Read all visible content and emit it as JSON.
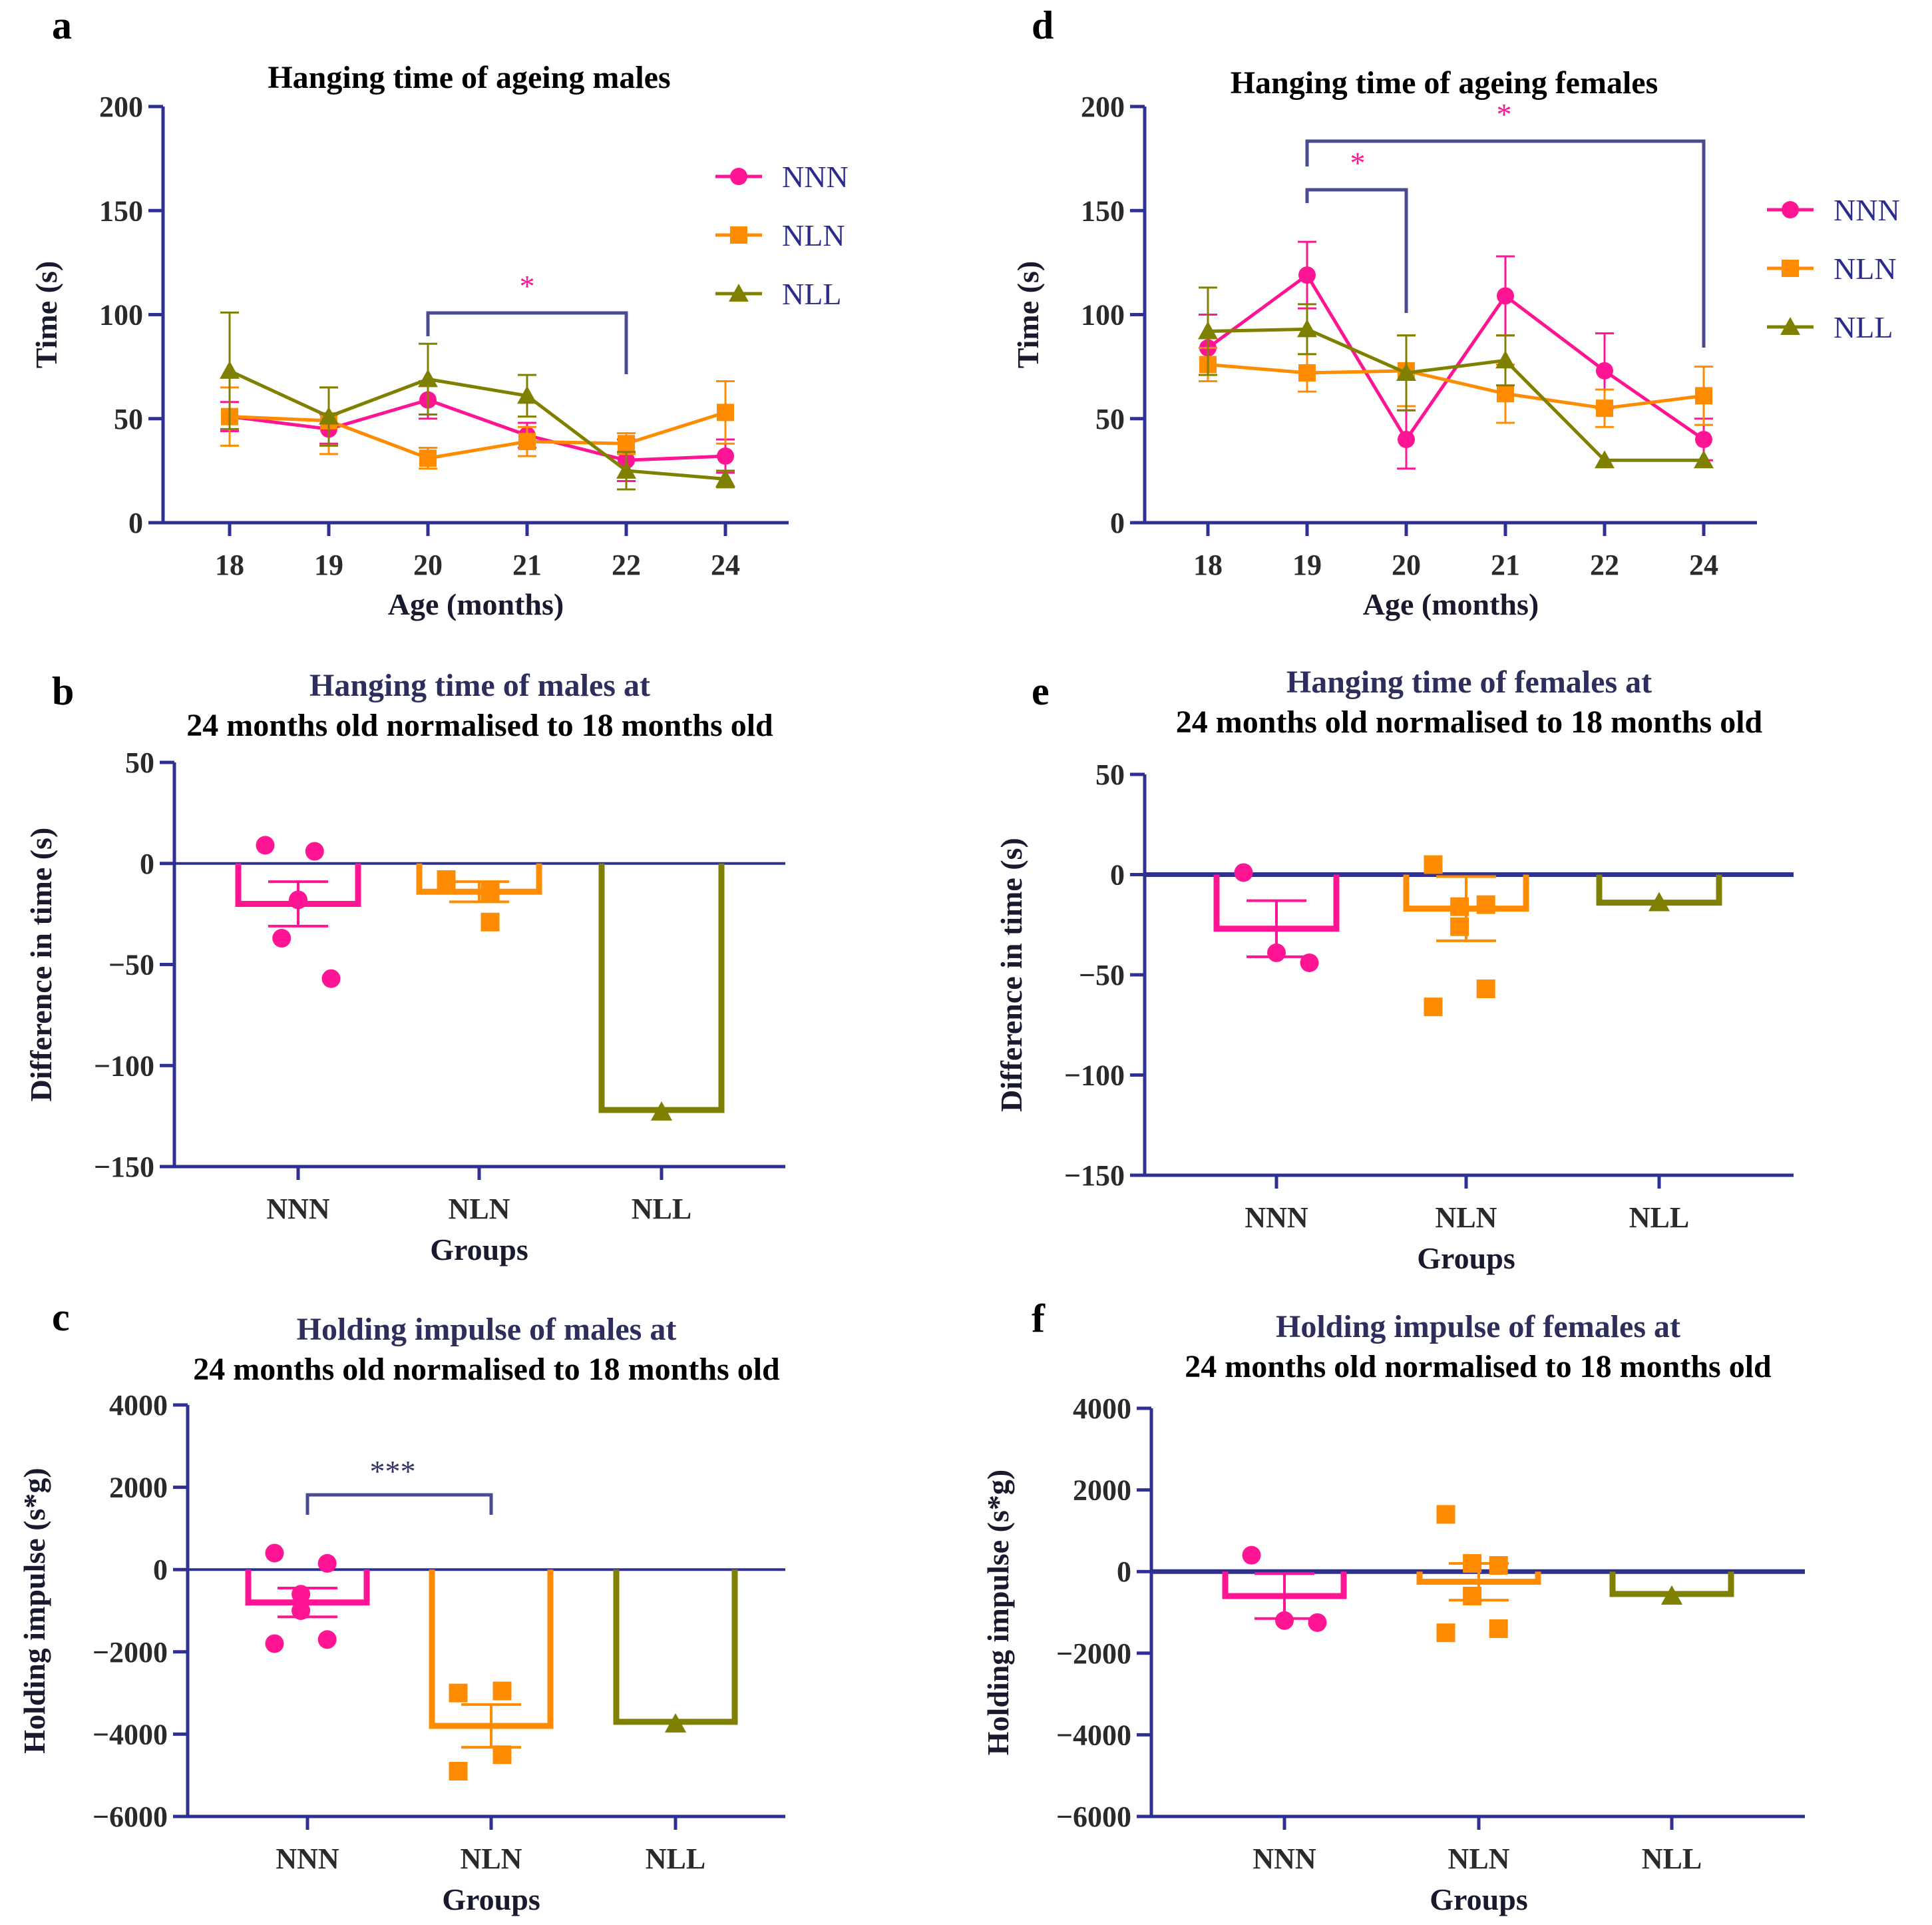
{
  "colors": {
    "NNN": "#ff1493",
    "NLN": "#ff8c00",
    "NLL": "#808000",
    "axis": "#2e3192",
    "bracket": "#4b4b8f",
    "sig_pink": "#ff1493"
  },
  "legend": [
    {
      "name": "NNN",
      "marker": "circle"
    },
    {
      "name": "NLN",
      "marker": "square"
    },
    {
      "name": "NLL",
      "marker": "triangle"
    }
  ],
  "chart_data": [
    {
      "panel": "a",
      "type": "line",
      "title": "Hanging time of ageing males",
      "xlabel": "Age (months)",
      "ylabel": "Time (s)",
      "categories": [
        "18",
        "19",
        "20",
        "21",
        "22",
        "24"
      ],
      "ylim": [
        0,
        200
      ],
      "yticks": [
        0,
        50,
        100,
        150,
        200
      ],
      "series": [
        {
          "name": "NNN",
          "values": [
            51,
            45,
            59,
            42,
            30,
            32
          ],
          "err": [
            7,
            7,
            9,
            6,
            10,
            8
          ]
        },
        {
          "name": "NLN",
          "values": [
            51,
            49,
            31,
            39,
            38,
            53
          ],
          "err": [
            14,
            16,
            5,
            7,
            5,
            15
          ]
        },
        {
          "name": "NLL",
          "values": [
            73,
            51,
            69,
            61,
            25,
            21
          ],
          "err": [
            28,
            14,
            17,
            10,
            9,
            4
          ]
        }
      ],
      "annotations": [
        {
          "from": "20",
          "to": "22",
          "label": "*",
          "color": "pink"
        }
      ]
    },
    {
      "panel": "d",
      "type": "line",
      "title": "Hanging time of ageing females",
      "xlabel": "Age (months)",
      "ylabel": "Time (s)",
      "categories": [
        "18",
        "19",
        "20",
        "21",
        "22",
        "24"
      ],
      "ylim": [
        0,
        200
      ],
      "yticks": [
        0,
        50,
        100,
        150,
        200
      ],
      "series": [
        {
          "name": "NNN",
          "values": [
            84,
            119,
            40,
            109,
            73,
            40
          ],
          "err": [
            16,
            16,
            14,
            19,
            18,
            10
          ]
        },
        {
          "name": "NLN",
          "values": [
            76,
            72,
            73,
            62,
            55,
            61
          ],
          "err": [
            8,
            9,
            17,
            14,
            9,
            14
          ]
        },
        {
          "name": "NLL",
          "values": [
            92,
            93,
            72,
            78,
            30,
            30
          ],
          "err": [
            21,
            12,
            18,
            12,
            0,
            0
          ]
        }
      ],
      "annotations": [
        {
          "from": "19",
          "to": "20",
          "label": "*",
          "color": "pink"
        },
        {
          "from": "19",
          "to": "24",
          "label": "*",
          "color": "pink"
        }
      ]
    },
    {
      "panel": "b",
      "type": "bar",
      "title": [
        "Hanging time of males at",
        "24 months old normalised to 18 months old"
      ],
      "xlabel": "Groups",
      "ylabel": "Difference in time (s)",
      "categories": [
        "NNN",
        "NLN",
        "NLL"
      ],
      "ylim": [
        -150,
        50
      ],
      "yticks": [
        -150,
        -100,
        -50,
        0,
        50
      ],
      "values": [
        -20,
        -14,
        -122
      ],
      "err": [
        11,
        5,
        0
      ],
      "points": [
        [
          9,
          6,
          -18,
          -37,
          -57
        ],
        [
          -8,
          -14,
          -29,
          -9
        ],
        [
          -123
        ]
      ]
    },
    {
      "panel": "e",
      "type": "bar",
      "title": [
        "Hanging time of females at",
        "24 months old normalised to 18 months old"
      ],
      "xlabel": "Groups",
      "ylabel": "Difference in time (s)",
      "categories": [
        "NNN",
        "NLN",
        "NLL"
      ],
      "ylim": [
        -150,
        50
      ],
      "yticks": [
        -150,
        -100,
        -50,
        0,
        50
      ],
      "values": [
        -27,
        -17,
        -14
      ],
      "err": [
        14,
        16,
        0
      ],
      "points": [
        [
          1,
          -39,
          -44
        ],
        [
          5,
          -15,
          -16,
          -26,
          -57,
          -66
        ],
        [
          -14
        ]
      ]
    },
    {
      "panel": "c",
      "type": "bar",
      "title": [
        "Holding impulse of males at",
        "24 months old normalised to 18 months old"
      ],
      "xlabel": "Groups",
      "ylabel": "Holding impulse (s*g)",
      "categories": [
        "NNN",
        "NLN",
        "NLL"
      ],
      "ylim": [
        -6000,
        4000
      ],
      "yticks": [
        -6000,
        -4000,
        -2000,
        0,
        2000,
        4000
      ],
      "values": [
        -800,
        -3800,
        -3700
      ],
      "err": [
        350,
        520,
        0
      ],
      "points": [
        [
          400,
          150,
          -600,
          -1000,
          -1700,
          -1800
        ],
        [
          -3000,
          -2950,
          -4500,
          -4900
        ],
        [
          -3750
        ]
      ],
      "annotations": [
        {
          "from": "NNN",
          "to": "NLN",
          "label": "***",
          "color": "dark"
        }
      ]
    },
    {
      "panel": "f",
      "type": "bar",
      "title": [
        "Holding impulse of females at",
        "24 months old normalised to 18 months old"
      ],
      "xlabel": "Groups",
      "ylabel": "Holding impulse (s*g)",
      "categories": [
        "NNN",
        "NLN",
        "NLL"
      ],
      "ylim": [
        -6000,
        4000
      ],
      "yticks": [
        -6000,
        -4000,
        -2000,
        0,
        2000,
        4000
      ],
      "values": [
        -600,
        -250,
        -550
      ],
      "err": [
        550,
        450,
        0
      ],
      "points": [
        [
          400,
          -1200,
          -1250
        ],
        [
          1400,
          150,
          200,
          -600,
          -1400,
          -1500
        ],
        [
          -600
        ]
      ]
    }
  ]
}
